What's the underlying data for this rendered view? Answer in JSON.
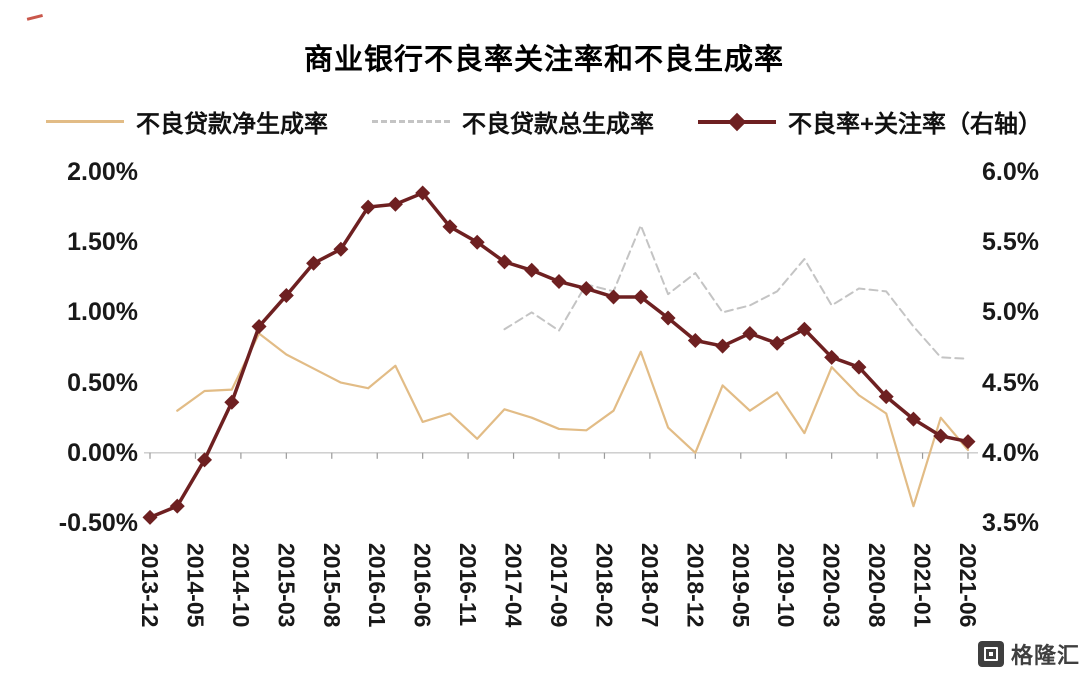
{
  "title": "商业银行不良率关注率和不良生成率",
  "watermark": {
    "text": "格隆汇"
  },
  "chart_data": {
    "type": "line",
    "title": "商业银行不良率关注率和不良生成率",
    "grid": false,
    "legend_position": "top",
    "x_axis": {
      "unit": "months since 2013-12",
      "range": [
        0,
        90
      ],
      "tick_months": [
        0,
        5,
        10,
        15,
        20,
        25,
        30,
        35,
        40,
        45,
        50,
        55,
        60,
        65,
        70,
        75,
        80,
        85,
        90
      ],
      "tick_labels": [
        "2013-12",
        "2014-05",
        "2014-10",
        "2015-03",
        "2015-08",
        "2016-01",
        "2016-06",
        "2016-11",
        "2017-04",
        "2017-09",
        "2018-02",
        "2018-07",
        "2018-12",
        "2019-05",
        "2019-10",
        "2020-03",
        "2020-08",
        "2021-01",
        "2021-06"
      ]
    },
    "left_axis": {
      "min": -0.5,
      "max": 2.0,
      "tick_values": [
        2.0,
        1.5,
        1.0,
        0.5,
        0.0,
        -0.5
      ],
      "tick_labels": [
        "2.00%",
        "1.50%",
        "1.00%",
        "0.50%",
        "0.00%",
        "-0.50%"
      ]
    },
    "right_axis": {
      "min": 3.5,
      "max": 6.0,
      "tick_values": [
        6.0,
        5.5,
        5.0,
        4.5,
        4.0,
        3.5
      ],
      "tick_labels": [
        "6.0%",
        "5.5%",
        "5.0%",
        "4.5%",
        "4.0%",
        "3.5%"
      ]
    },
    "series": [
      {
        "name": "不良贷款净生成率",
        "axis": "left",
        "color": "#e2bc86",
        "style": "solid",
        "width": 2.2,
        "marker": "none",
        "x": [
          3,
          6,
          9,
          12,
          15,
          18,
          21,
          24,
          27,
          30,
          33,
          36,
          39,
          42,
          45,
          48,
          51,
          54,
          57,
          60,
          63,
          66,
          69,
          72,
          75,
          78,
          81,
          84,
          87,
          90
        ],
        "y": [
          0.3,
          0.44,
          0.45,
          0.85,
          0.7,
          0.6,
          0.5,
          0.46,
          0.62,
          0.22,
          0.28,
          0.1,
          0.31,
          0.25,
          0.17,
          0.16,
          0.3,
          0.72,
          0.18,
          0.0,
          0.48,
          0.3,
          0.43,
          0.14,
          0.61,
          0.41,
          0.28,
          -0.38,
          0.25,
          0.02
        ]
      },
      {
        "name": "不良贷款总生成率",
        "axis": "left",
        "color": "#c4c4c4",
        "style": "dashed",
        "width": 2.0,
        "marker": "none",
        "x": [
          39,
          42,
          45,
          48,
          51,
          54,
          57,
          60,
          63,
          66,
          69,
          72,
          75,
          78,
          81,
          84,
          87,
          90
        ],
        "y": [
          0.88,
          1.0,
          0.87,
          1.2,
          1.15,
          1.62,
          1.13,
          1.28,
          1.0,
          1.05,
          1.15,
          1.38,
          1.05,
          1.17,
          1.15,
          0.9,
          0.68,
          0.67
        ]
      },
      {
        "name": "不良率+关注率（右轴）",
        "axis": "right",
        "color": "#6e2021",
        "style": "solid",
        "width": 3.5,
        "marker": "diamond",
        "x": [
          0,
          3,
          6,
          9,
          12,
          15,
          18,
          21,
          24,
          27,
          30,
          33,
          36,
          39,
          42,
          45,
          48,
          51,
          54,
          57,
          60,
          63,
          66,
          69,
          72,
          75,
          78,
          81,
          84,
          87,
          90
        ],
        "y": [
          3.54,
          3.62,
          3.95,
          4.36,
          4.9,
          5.12,
          5.35,
          5.45,
          5.75,
          5.77,
          5.85,
          5.61,
          5.5,
          5.36,
          5.3,
          5.22,
          5.17,
          5.11,
          5.11,
          4.96,
          4.8,
          4.76,
          4.85,
          4.78,
          4.88,
          4.68,
          4.61,
          4.4,
          4.24,
          4.12,
          4.08
        ]
      }
    ]
  }
}
